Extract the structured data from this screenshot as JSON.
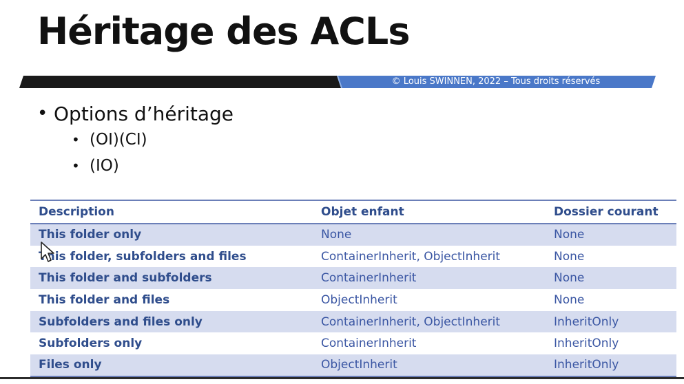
{
  "slide": {
    "title": "Héritage des ACLs",
    "copyright": "© Louis SWINNEN, 2022 – Tous droits réservés"
  },
  "bullets": {
    "main": "Options d’héritage",
    "sub": [
      "(OI)(CI)",
      "(IO)"
    ]
  },
  "table": {
    "headers": [
      "Description",
      "Objet enfant",
      "Dossier courant"
    ],
    "rows": [
      [
        "This folder only",
        "None",
        "None"
      ],
      [
        "This folder, subfolders and files",
        "ContainerInherit, ObjectInherit",
        "None"
      ],
      [
        "This folder and subfolders",
        "ContainerInherit",
        "None"
      ],
      [
        "This folder and files",
        "ObjectInherit",
        "None"
      ],
      [
        "Subfolders and files only",
        "ContainerInherit, ObjectInherit",
        "InheritOnly"
      ],
      [
        "Subfolders only",
        "ContainerInherit",
        "InheritOnly"
      ],
      [
        "Files only",
        "ObjectInherit",
        "InheritOnly"
      ]
    ]
  },
  "colors": {
    "band_dark": "#1a1a1a",
    "band_blue": "#4a78c8",
    "header_text": "#2f4d8c",
    "row_alt": "#d6dcef"
  },
  "icons": {
    "cursor": "mouse-pointer-icon"
  }
}
